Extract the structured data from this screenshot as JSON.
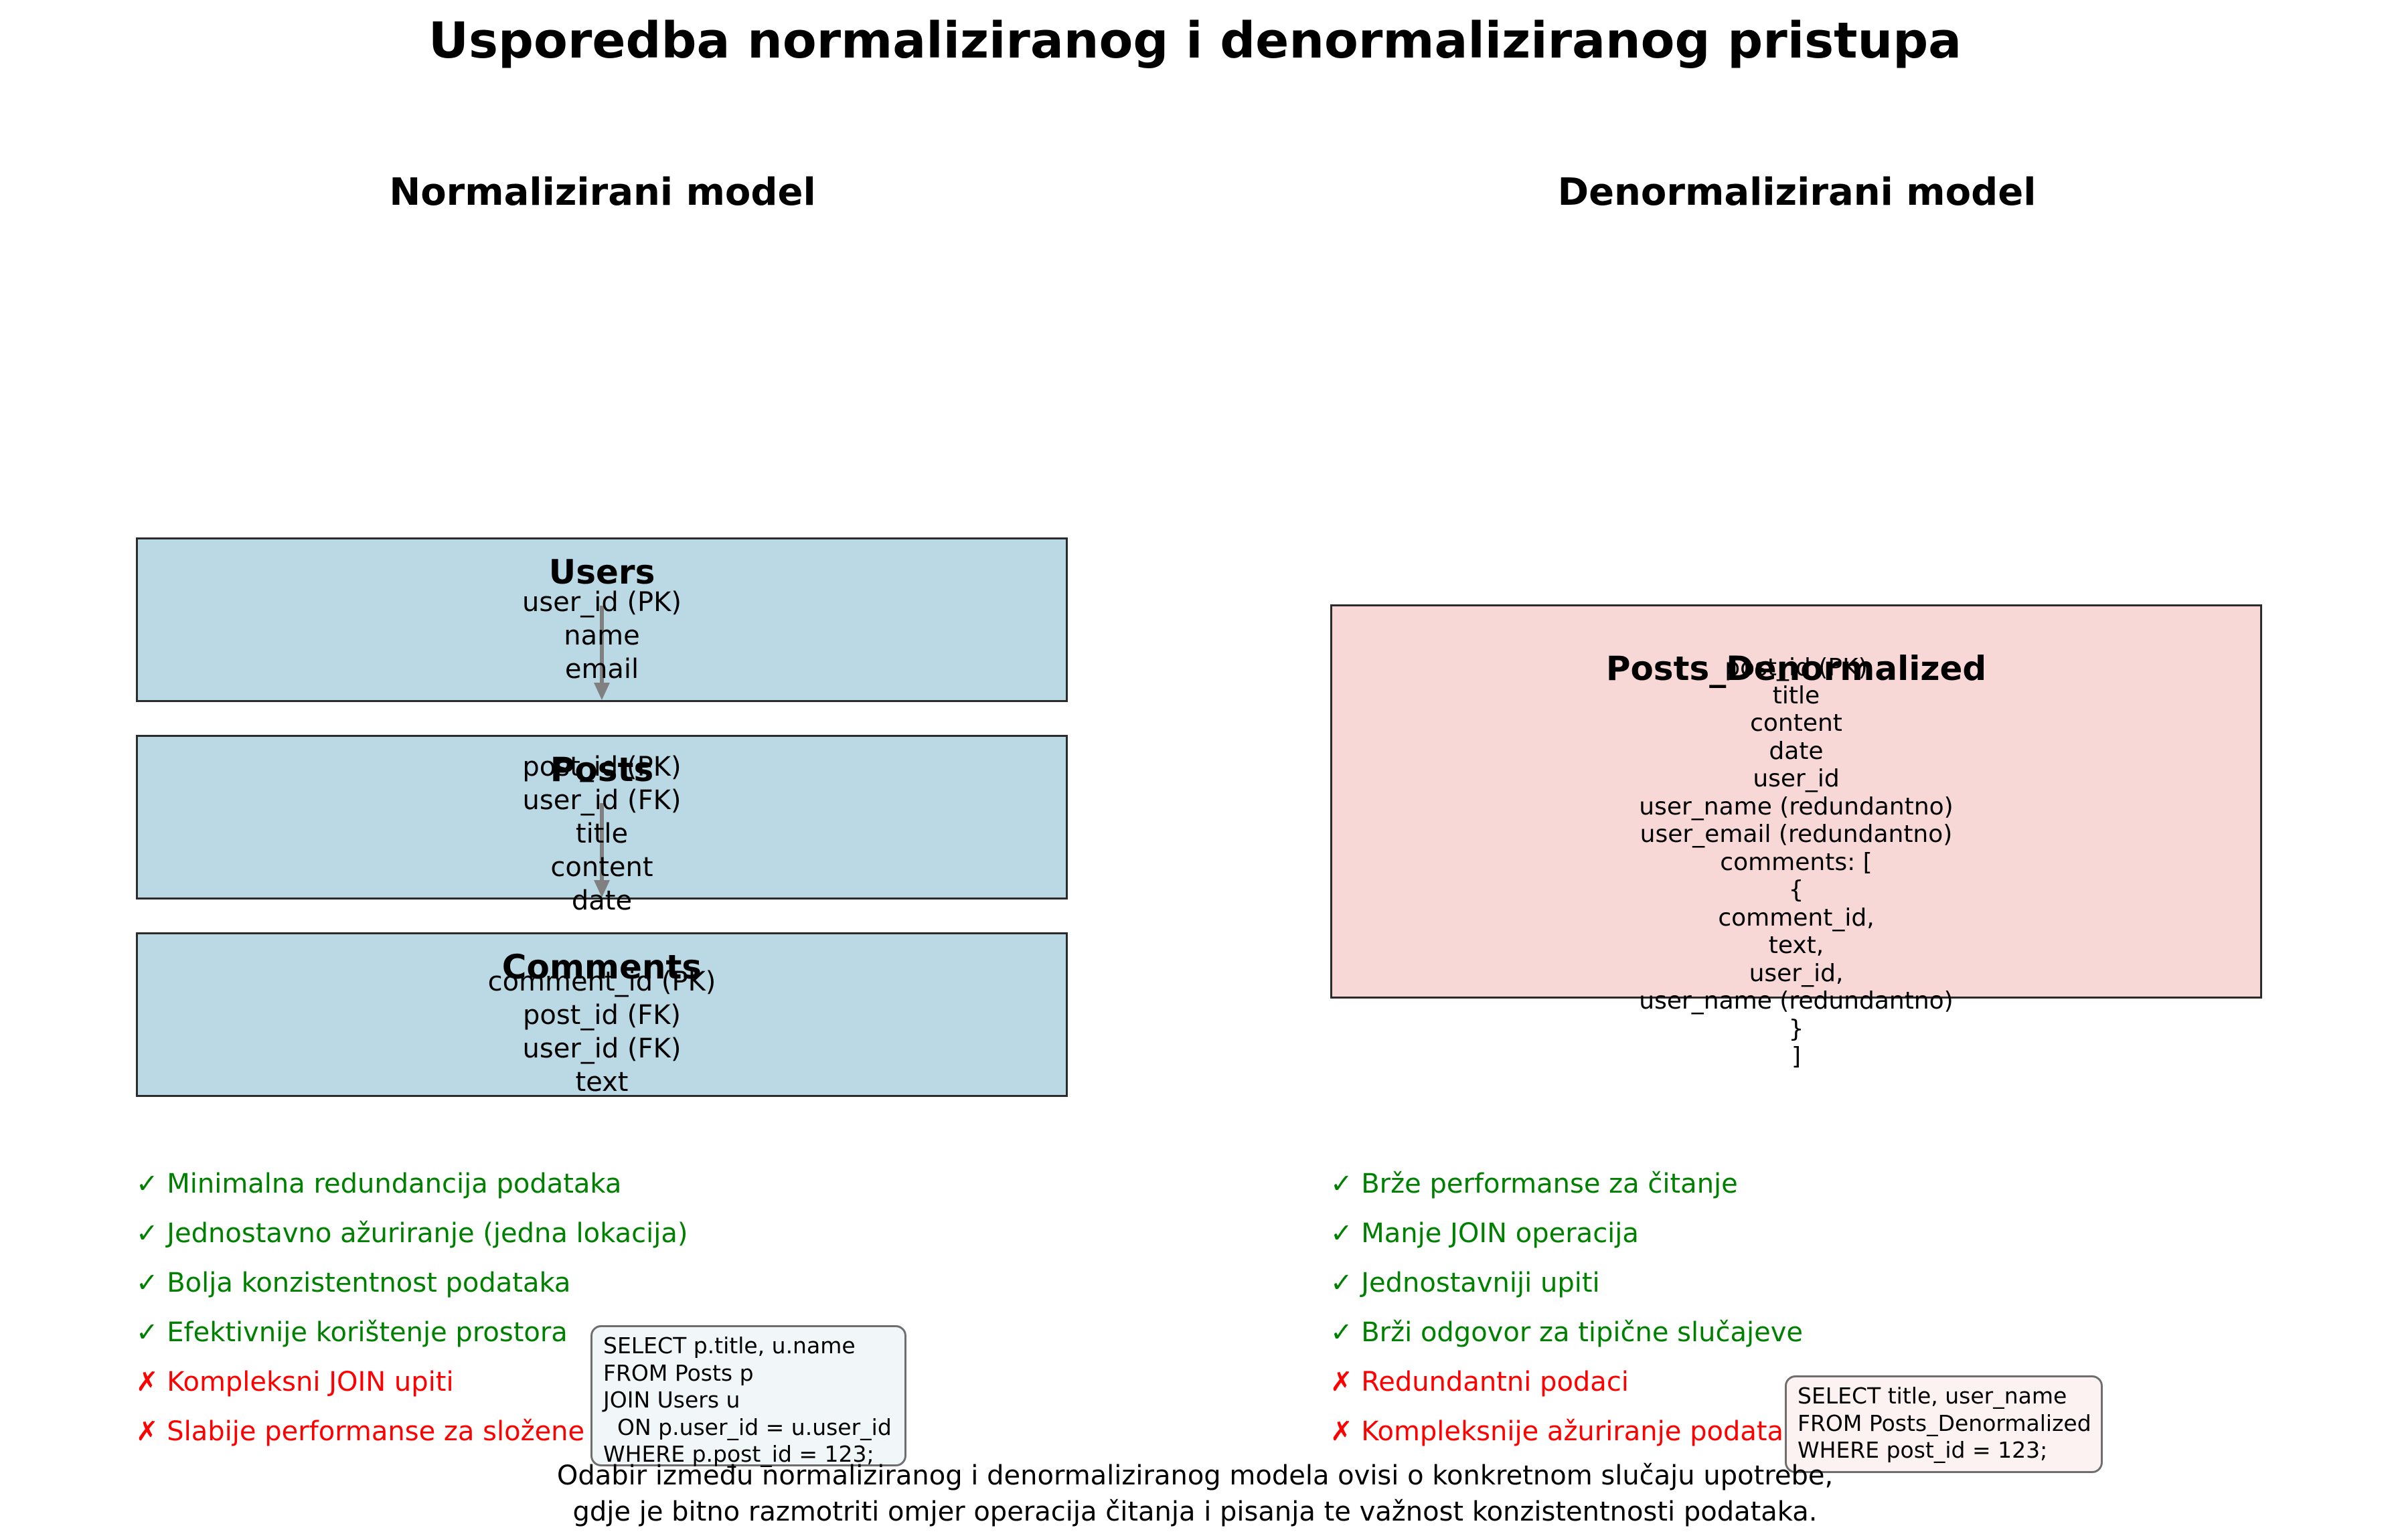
{
  "title": "Usporedba normaliziranog i denormaliziranog pristupa",
  "normalized": {
    "heading": "Normalizirani model",
    "tables": [
      {
        "name": "Users",
        "fields": [
          "user_id (PK)",
          "name",
          "email"
        ]
      },
      {
        "name": "Posts",
        "fields": [
          "post_id (PK)",
          "user_id (FK)",
          "title",
          "content",
          "date"
        ]
      },
      {
        "name": "Comments",
        "fields": [
          "comment_id (PK)",
          "post_id (FK)",
          "user_id (FK)",
          "text"
        ]
      }
    ],
    "pros": [
      "✓ Minimalna redundancija podataka",
      "✓ Jednostavno ažuriranje (jedna lokacija)",
      "✓ Bolja konzistentnost podataka",
      "✓ Efektivnije korištenje prostora"
    ],
    "cons": [
      "✗ Kompleksni JOIN upiti",
      "✗ Slabije performanse za složene upite"
    ],
    "query": "SELECT p.title, u.name\nFROM Posts p\nJOIN Users u\n  ON p.user_id = u.user_id\nWHERE p.post_id = 123;"
  },
  "denormalized": {
    "heading": "Denormalizirani model",
    "table": {
      "name": "Posts_Denormalized",
      "fields": [
        "post_id (PK)",
        "title",
        "content",
        "date",
        "user_id",
        "user_name (redundantno)",
        "user_email (redundantno)",
        "comments: [",
        "{",
        "comment_id,",
        "text,",
        "user_id,",
        "user_name (redundantno)",
        "}",
        "]"
      ]
    },
    "pros": [
      "✓ Brže performanse za čitanje",
      "✓ Manje JOIN operacija",
      "✓ Jednostavniji upiti",
      "✓ Brži odgovor za tipične slučajeve"
    ],
    "cons": [
      "✗ Redundantni podaci",
      "✗ Kompleksnije ažuriranje podataka"
    ],
    "query": "SELECT title, user_name\nFROM Posts_Denormalized\nWHERE post_id = 123;"
  },
  "footer": [
    "Odabir između normaliziranog i denormaliziranog modela ovisi o konkretnom slučaju upotrebe,",
    "gdje je bitno razmotriti omjer operacija čitanja i pisanja te važnost konzistentnosti podataka."
  ],
  "colors": {
    "normalized_fill": "#bad9e4",
    "denormalized_fill": "#f8d7d7",
    "pro": "#008000",
    "con": "#ff0000",
    "arrow": "#808080"
  }
}
